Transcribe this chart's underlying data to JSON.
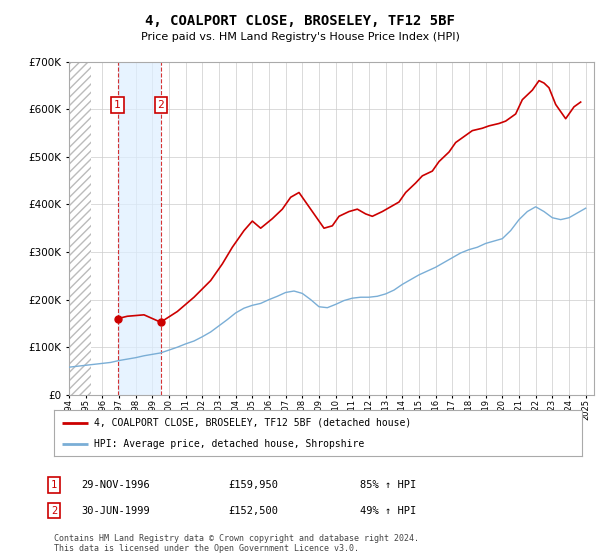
{
  "title": "4, COALPORT CLOSE, BROSELEY, TF12 5BF",
  "subtitle": "Price paid vs. HM Land Registry's House Price Index (HPI)",
  "legend_line1": "4, COALPORT CLOSE, BROSELEY, TF12 5BF (detached house)",
  "legend_line2": "HPI: Average price, detached house, Shropshire",
  "sale1_date": "29-NOV-1996",
  "sale1_price": "£159,950",
  "sale1_hpi": "85% ↑ HPI",
  "sale1_year": 1996.91,
  "sale1_price_val": 159950,
  "sale2_date": "30-JUN-1999",
  "sale2_price": "£152,500",
  "sale2_hpi": "49% ↑ HPI",
  "sale2_year": 1999.5,
  "sale2_price_val": 152500,
  "copyright": "Contains HM Land Registry data © Crown copyright and database right 2024.\nThis data is licensed under the Open Government Licence v3.0.",
  "red_color": "#cc0000",
  "blue_color": "#7aaed6",
  "shade_color": "#ddeeff",
  "background_color": "#ffffff",
  "grid_color": "#cccccc",
  "ylim": [
    0,
    700000
  ],
  "xlim_start": 1994.0,
  "xlim_end": 2025.5,
  "hatch_end": 1995.3,
  "hpi_years": [
    1994.0,
    1994.5,
    1995.0,
    1995.5,
    1996.0,
    1996.5,
    1997.0,
    1997.5,
    1998.0,
    1998.5,
    1999.0,
    1999.5,
    2000.0,
    2000.5,
    2001.0,
    2001.5,
    2002.0,
    2002.5,
    2003.0,
    2003.5,
    2004.0,
    2004.5,
    2005.0,
    2005.5,
    2006.0,
    2006.5,
    2007.0,
    2007.5,
    2008.0,
    2008.5,
    2009.0,
    2009.5,
    2010.0,
    2010.5,
    2011.0,
    2011.5,
    2012.0,
    2012.5,
    2013.0,
    2013.5,
    2014.0,
    2014.5,
    2015.0,
    2015.5,
    2016.0,
    2016.5,
    2017.0,
    2017.5,
    2018.0,
    2018.5,
    2019.0,
    2019.5,
    2020.0,
    2020.5,
    2021.0,
    2021.5,
    2022.0,
    2022.5,
    2023.0,
    2023.5,
    2024.0,
    2024.5,
    2025.0
  ],
  "hpi_vals": [
    58000,
    60000,
    62000,
    64000,
    66000,
    68000,
    72000,
    75000,
    78000,
    82000,
    85000,
    88000,
    94000,
    100000,
    107000,
    113000,
    122000,
    132000,
    145000,
    158000,
    172000,
    182000,
    188000,
    192000,
    200000,
    207000,
    215000,
    218000,
    213000,
    200000,
    185000,
    183000,
    190000,
    198000,
    203000,
    205000,
    205000,
    207000,
    212000,
    220000,
    232000,
    242000,
    252000,
    260000,
    268000,
    278000,
    288000,
    298000,
    305000,
    310000,
    318000,
    323000,
    328000,
    345000,
    368000,
    385000,
    395000,
    385000,
    372000,
    368000,
    372000,
    382000,
    392000
  ],
  "house_years": [
    1996.91,
    1997.5,
    1998.5,
    1999.5,
    2000.5,
    2001.5,
    2002.5,
    2003.2,
    2003.8,
    2004.5,
    2005.0,
    2005.5,
    2006.2,
    2006.8,
    2007.3,
    2007.8,
    2008.3,
    2008.8,
    2009.3,
    2009.8,
    2010.2,
    2010.8,
    2011.3,
    2011.8,
    2012.2,
    2012.8,
    2013.3,
    2013.8,
    2014.2,
    2014.8,
    2015.2,
    2015.8,
    2016.2,
    2016.8,
    2017.2,
    2017.8,
    2018.2,
    2018.8,
    2019.2,
    2019.8,
    2020.2,
    2020.8,
    2021.2,
    2021.8,
    2022.2,
    2022.5,
    2022.8,
    2023.2,
    2023.5,
    2023.8,
    2024.0,
    2024.3,
    2024.7
  ],
  "house_vals": [
    159950,
    165000,
    168000,
    152500,
    175000,
    205000,
    240000,
    275000,
    310000,
    345000,
    365000,
    350000,
    370000,
    390000,
    415000,
    425000,
    400000,
    375000,
    350000,
    355000,
    375000,
    385000,
    390000,
    380000,
    375000,
    385000,
    395000,
    405000,
    425000,
    445000,
    460000,
    470000,
    490000,
    510000,
    530000,
    545000,
    555000,
    560000,
    565000,
    570000,
    575000,
    590000,
    620000,
    640000,
    660000,
    655000,
    645000,
    610000,
    595000,
    580000,
    590000,
    605000,
    615000
  ]
}
